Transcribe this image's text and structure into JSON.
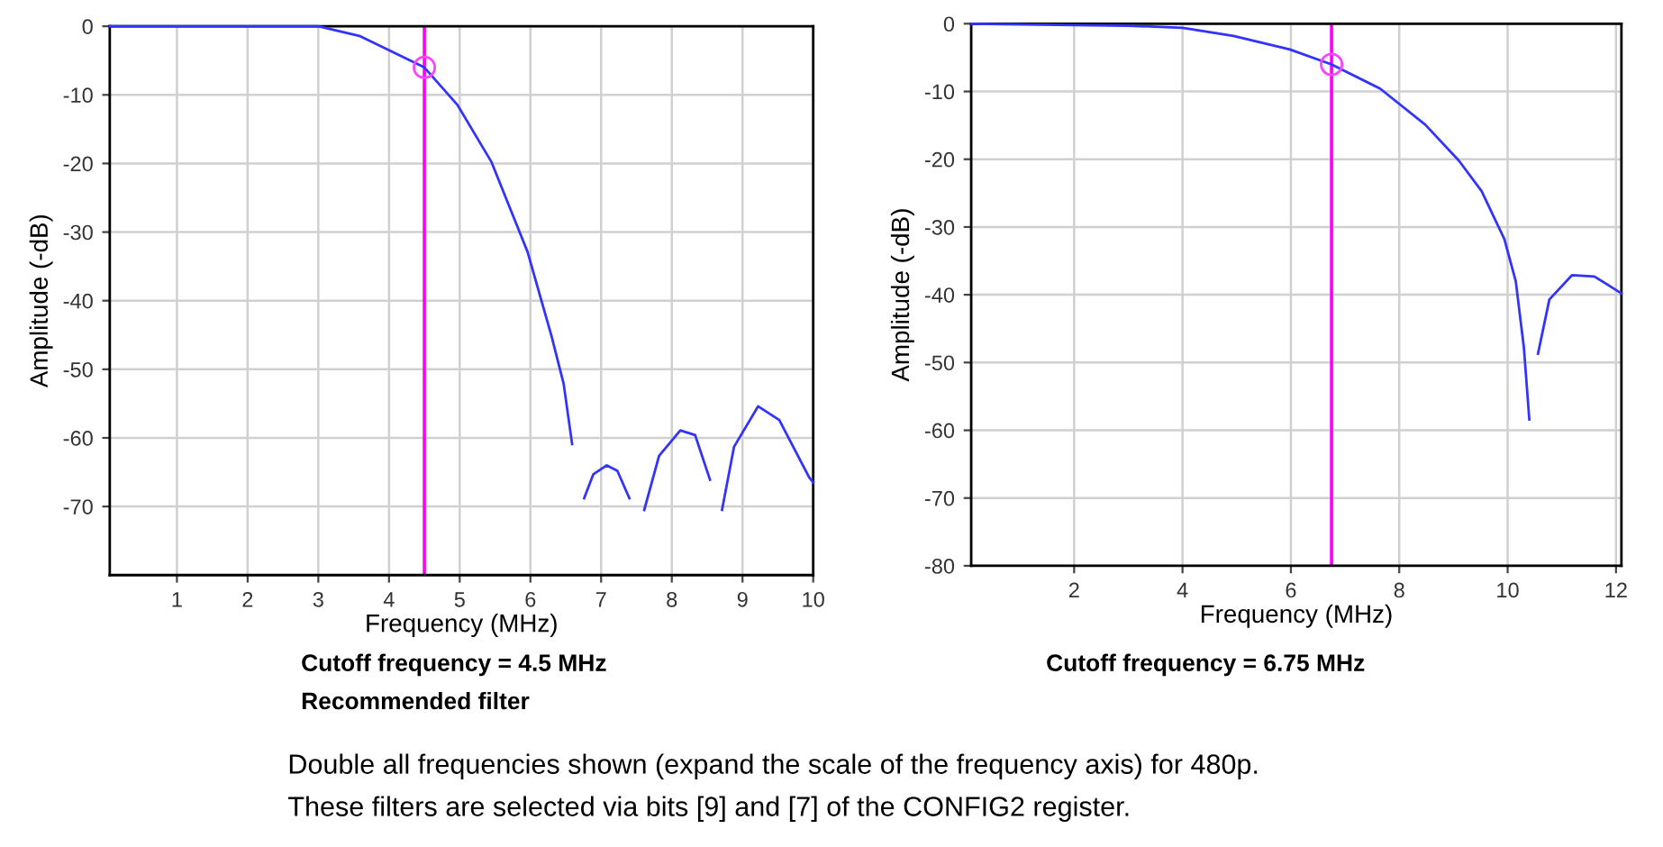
{
  "chart_data": [
    {
      "type": "line",
      "xlabel": "Frequency (MHz)",
      "ylabel": "Amplitude (-dB)",
      "xlim": [
        0.05,
        10
      ],
      "ylim": [
        -80,
        0
      ],
      "xticks": [
        1,
        2,
        3,
        4,
        5,
        6,
        7,
        8,
        9,
        10
      ],
      "yticks": [
        0,
        -10,
        -20,
        -30,
        -40,
        -50,
        -60,
        -70
      ],
      "grid": true,
      "legend": false,
      "series": [
        {
          "color": "#3333ff",
          "x": [
            0.05,
            1,
            2,
            3,
            3.58,
            4.5,
            4.97,
            5.45,
            5.96,
            6.3,
            6.47,
            6.59,
            6.68,
            6.76,
            6.89,
            7.08,
            7.23,
            7.4,
            7.53,
            7.61,
            7.82,
            8.12,
            8.33,
            8.54,
            8.63,
            8.71,
            8.88,
            9.22,
            9.52,
            9.94,
            10
          ],
          "values": [
            0,
            0,
            0,
            0,
            -1.4,
            -6,
            -11.5,
            -19.8,
            -32.9,
            -45.2,
            -52.1,
            -60.9,
            null,
            -68.8,
            -65.3,
            -64,
            -64.8,
            -68.8,
            null,
            -70.5,
            -62.6,
            -58.9,
            -59.6,
            -66.1,
            null,
            -70.5,
            -61.3,
            -55.4,
            -57.4,
            -65.7,
            -66.5
          ]
        },
        {
          "type": "scatter",
          "color": "#ff44ff",
          "x": [
            4.5
          ],
          "values": [
            -6
          ],
          "marker": "circle"
        }
      ],
      "ref_lines": [
        {
          "axis": "x",
          "value": 4.5,
          "color": "#ff00ff"
        }
      ],
      "annotations": [
        "Cutoff frequency = 4.5 MHz",
        "Recommended filter"
      ]
    },
    {
      "type": "line",
      "xlabel": "Frequency (MHz)",
      "ylabel": "Amplitude (-dB)",
      "xlim": [
        0.1,
        12.1
      ],
      "ylim": [
        -80,
        0
      ],
      "xticks": [
        2,
        4,
        6,
        8,
        10,
        12
      ],
      "yticks": [
        0,
        -10,
        -20,
        -30,
        -40,
        -50,
        -60,
        -70,
        -80
      ],
      "grid": true,
      "legend": false,
      "series": [
        {
          "color": "#3333ff",
          "x": [
            0.1,
            2,
            3,
            4,
            4.94,
            5.98,
            6.75,
            7.65,
            8.48,
            9.1,
            9.52,
            9.94,
            10.15,
            10.3,
            10.4,
            10.45,
            10.56,
            10.77,
            11.19,
            11.6,
            12.1
          ],
          "values": [
            0,
            -0.2,
            -0.3,
            -0.6,
            -1.8,
            -3.8,
            -6,
            -9.6,
            -14.9,
            -20.2,
            -24.7,
            -31.8,
            -38,
            -47.8,
            -58.4,
            null,
            -48.7,
            -40.7,
            -37.1,
            -37.3,
            -39.8
          ]
        },
        {
          "type": "scatter",
          "color": "#ff44ff",
          "x": [
            6.75
          ],
          "values": [
            -6
          ],
          "marker": "circle"
        }
      ],
      "ref_lines": [
        {
          "axis": "x",
          "value": 6.75,
          "color": "#ff00ff"
        }
      ],
      "annotations": [
        "Cutoff frequency = 6.75 MHz",
        "Double all frequencies shown (expand the scale of the frequency axis) for 480p.",
        "These filters are selected via bits [9] and [7] of the CONFIG2 register."
      ]
    }
  ]
}
